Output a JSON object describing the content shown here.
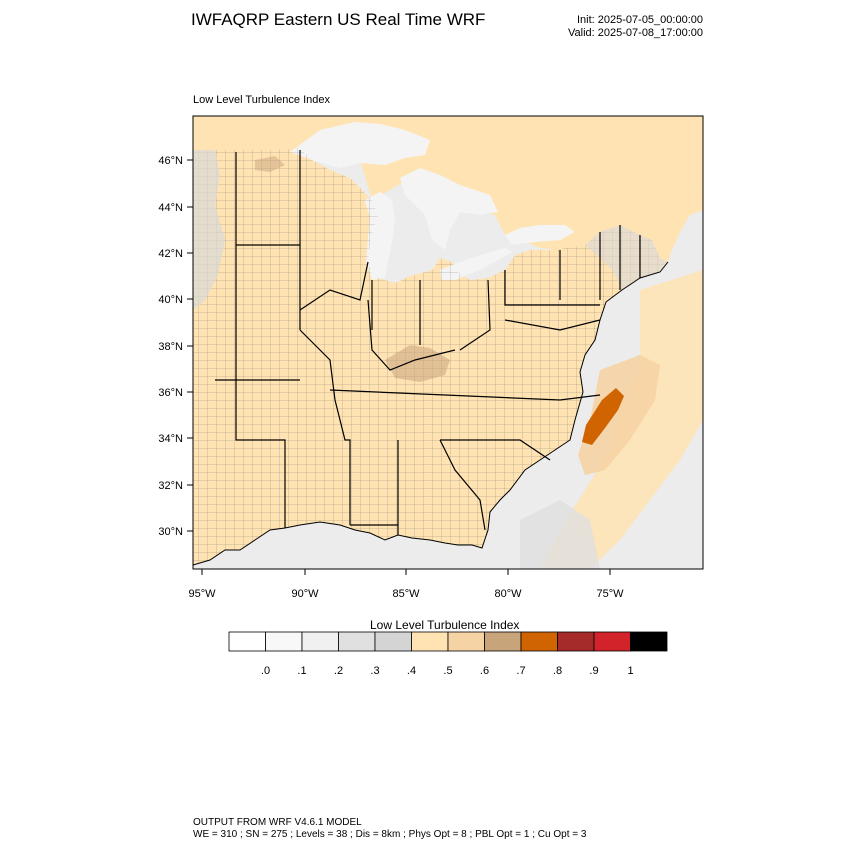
{
  "header": {
    "title": "IWFAQRP Eastern US Real Time WRF",
    "init": "Init: 2025-07-05_00:00:00",
    "valid": "Valid: 2025-07-08_17:00:00"
  },
  "map": {
    "label": "Low Level Turbulence Index",
    "lat_ticks": [
      "46°N",
      "44°N",
      "42°N",
      "40°N",
      "38°N",
      "36°N",
      "34°N",
      "32°N",
      "30°N"
    ],
    "lon_ticks": [
      "95°W",
      "90°W",
      "85°W",
      "80°W",
      "75°W"
    ],
    "colors": {
      "land_base": "#ffe3b3",
      "ocean_base": "#ececec",
      "lake": "#f4f4f4",
      "boundary": "#000000"
    }
  },
  "colorbar": {
    "title": "Low Level Turbulence Index",
    "labels": [
      ".0",
      ".1",
      ".2",
      ".3",
      ".4",
      ".5",
      ".6",
      ".7",
      ".8",
      ".9",
      "1"
    ],
    "colors": [
      "#ffffff",
      "#f8f8f8",
      "#f0f0f0",
      "#e0e0e0",
      "#d4d4d4",
      "#ffe3b3",
      "#f6d3a4",
      "#c8a47b",
      "#d06400",
      "#a52a2a",
      "#d2232a",
      "#000000"
    ]
  },
  "footer": {
    "line1": "OUTPUT FROM WRF V4.6.1 MODEL",
    "line2": "WE = 310 ; SN = 275 ; Levels = 38 ; Dis = 8km ; Phys Opt = 8 ; PBL Opt = 1 ; Cu Opt = 3"
  }
}
